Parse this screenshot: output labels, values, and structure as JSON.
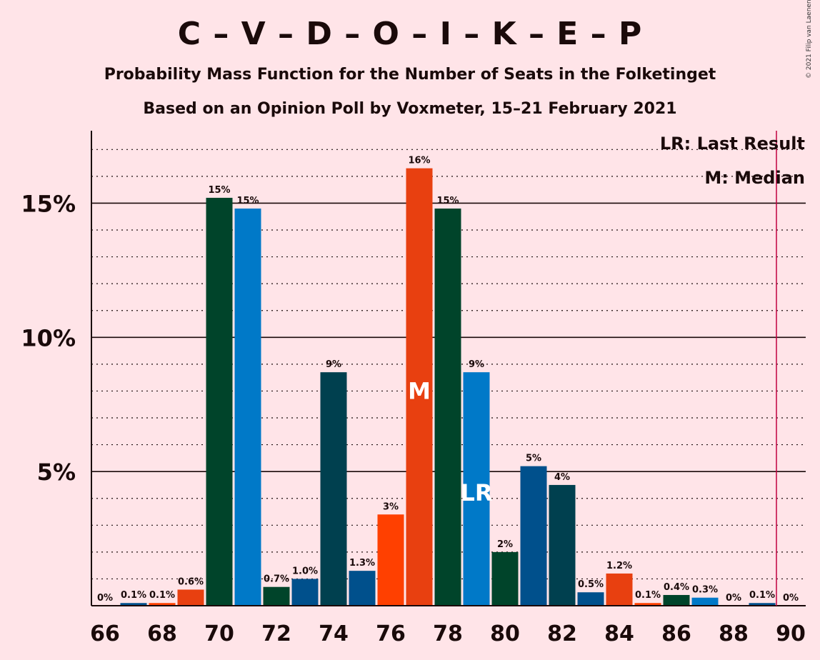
{
  "header": {
    "title": "C – V – D – O – I – K – E – P",
    "subtitle1": "Probability Mass Function for the Number of Seats in the Folketinget",
    "subtitle2": "Based on an Opinion Poll by Voxmeter, 15–21 February 2021",
    "copyright": "© 2021 Filip van Laenen"
  },
  "legend": {
    "last_result": "LR: Last Result",
    "median": "M: Median"
  },
  "colors": {
    "background": "#FFE4E8",
    "dark_green": "#00442A",
    "blue": "#0079C8",
    "dark_teal": "#00404F",
    "navy": "#00508C",
    "orange": "#E84010",
    "bright_orange": "#FF4000",
    "majority_line": "#C0003F"
  },
  "chart_data": {
    "type": "bar",
    "x": [
      66,
      67,
      68,
      69,
      70,
      71,
      72,
      73,
      74,
      75,
      76,
      77,
      78,
      79,
      80,
      81,
      82,
      83,
      84,
      85,
      86,
      87,
      88,
      89,
      90
    ],
    "values": [
      0,
      0.1,
      0.1,
      0.6,
      15.2,
      14.8,
      0.7,
      1.0,
      8.7,
      1.3,
      3.4,
      16.3,
      14.8,
      8.7,
      2.0,
      5.2,
      4.5,
      0.5,
      1.2,
      0.1,
      0.4,
      0.3,
      0,
      0.1,
      0
    ],
    "labels": [
      "0%",
      "0.1%",
      "0.1%",
      "0.6%",
      "15%",
      "15%",
      "0.7%",
      "1.0%",
      "9%",
      "1.3%",
      "3%",
      "16%",
      "15%",
      "9%",
      "2%",
      "5%",
      "4%",
      "0.5%",
      "1.2%",
      "0.1%",
      "0.4%",
      "0.3%",
      "0%",
      "0.1%",
      "0%"
    ],
    "bar_colors": [
      "#00442A",
      "#00508C",
      "#FF4000",
      "#E84010",
      "#00442A",
      "#0079C8",
      "#00442A",
      "#00508C",
      "#00404F",
      "#00508C",
      "#FF4000",
      "#E84010",
      "#00442A",
      "#0079C8",
      "#00442A",
      "#00508C",
      "#00404F",
      "#00508C",
      "#E84010",
      "#FF4000",
      "#00442A",
      "#0079C8",
      "#00442A",
      "#00508C",
      "#00404F"
    ],
    "x_tick_labels": [
      "66",
      "68",
      "70",
      "72",
      "74",
      "76",
      "78",
      "80",
      "82",
      "84",
      "86",
      "88",
      "90"
    ],
    "y_ticks": [
      5,
      10,
      15
    ],
    "y_tick_labels": [
      "5%",
      "10%",
      "15%"
    ],
    "ylim": [
      0,
      17.7
    ],
    "median": 77,
    "median_label": "M",
    "last_result": 79,
    "last_result_label": "LR",
    "majority": 89.5,
    "grid": "dotted minor every 1%, solid major every 5%"
  }
}
